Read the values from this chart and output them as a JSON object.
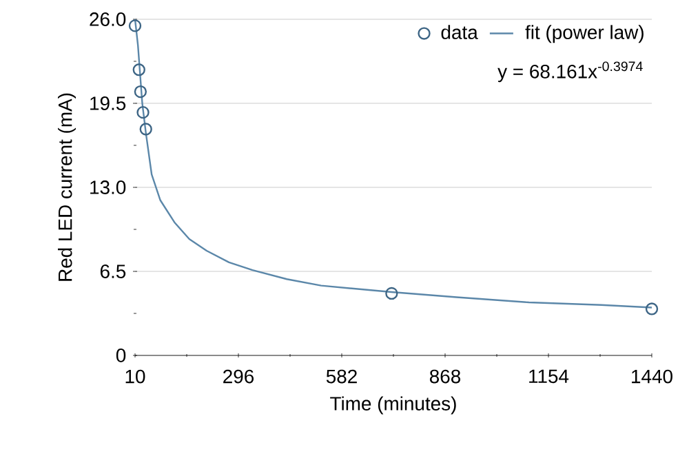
{
  "chart_data": {
    "type": "scatter",
    "xlabel": "Time (minutes)",
    "ylabel": "Red LED current (mA)",
    "xlim": [
      10,
      1440
    ],
    "xticks": [
      10,
      296,
      582,
      868,
      1154,
      1440
    ],
    "ylim": [
      0,
      26
    ],
    "yticks": [
      0,
      6.5,
      {
        "value": 13,
        "label": "13.0"
      },
      19.5,
      {
        "value": 26,
        "label": "26.0"
      }
    ],
    "grid": "y",
    "legend": "top right",
    "annotations": [
      "y = 68.161x$^{-0.3974}$"
    ],
    "series": [
      {
        "name": "data",
        "marker": "circle",
        "color": "#3d6585",
        "x": [
          10,
          21,
          25,
          32,
          40,
          720,
          1440
        ],
        "values": [
          25.5,
          22.1,
          20.4,
          18.8,
          17.5,
          4.8,
          3.6
        ]
      },
      {
        "name": "fit (power law)",
        "type": "line",
        "marker": "none",
        "color": "#5b87a9",
        "x": [
          10,
          18,
          30,
          40,
          56,
          80,
          119,
          160,
          208,
          270,
          335,
          430,
          525,
          720,
          900,
          1100,
          1300,
          1440
        ],
        "values": [
          26,
          24,
          19.5,
          17.2,
          14.0,
          12.0,
          10.3,
          9.0,
          8.1,
          7.2,
          6.6,
          5.9,
          5.4,
          4.9,
          4.5,
          4.1,
          3.9,
          3.7
        ]
      }
    ]
  }
}
